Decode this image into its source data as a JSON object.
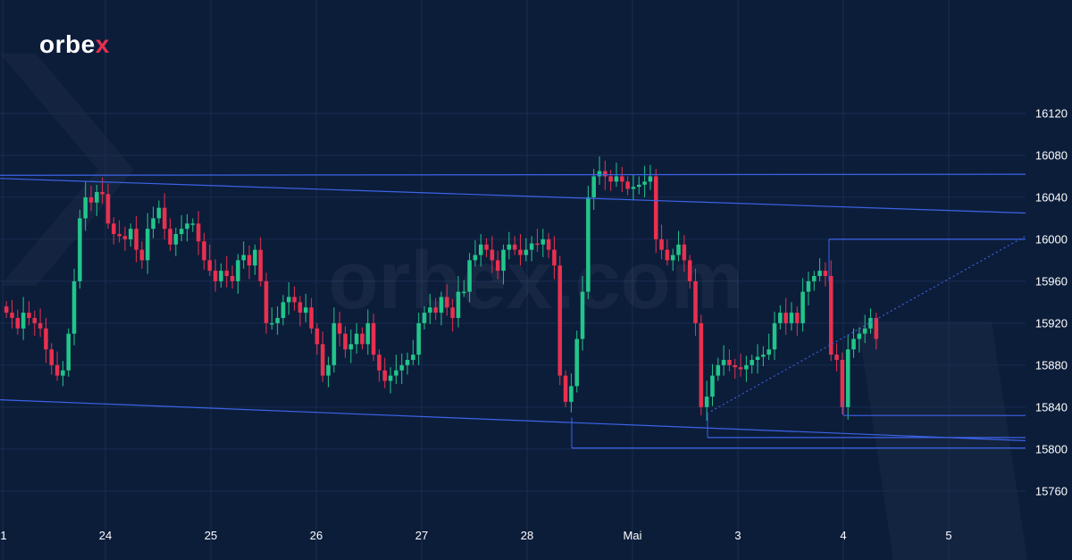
{
  "brand": {
    "logo_text": "orbe",
    "logo_x": "x",
    "watermark": "orbex.com",
    "accent": "#e8304f"
  },
  "colors": {
    "background": "#0c1d3a",
    "grid": "#1a2d4f",
    "up": "#22c58a",
    "down": "#e8304f",
    "line": "#3d63e8",
    "text": "#ffffff"
  },
  "chart_data": {
    "type": "candlestick",
    "title": "",
    "xlabel": "",
    "ylabel": "",
    "ylim": [
      15730,
      16160
    ],
    "xlim": [
      0,
      1148
    ],
    "grid": true,
    "yticks": [
      16120,
      16080,
      16040,
      16000,
      15960,
      15920,
      15880,
      15840,
      15800,
      15760
    ],
    "xticks": [
      {
        "label": "1",
        "x": 3
      },
      {
        "label": "24",
        "x": 118
      },
      {
        "label": "25",
        "x": 236
      },
      {
        "label": "26",
        "x": 354
      },
      {
        "label": "27",
        "x": 472
      },
      {
        "label": "28",
        "x": 590
      },
      {
        "label": "Mai",
        "x": 708
      },
      {
        "label": "3",
        "x": 826
      },
      {
        "label": "4",
        "x": 944
      },
      {
        "label": "5",
        "x": 1062
      }
    ],
    "closes": [
      15930,
      15925,
      15915,
      15930,
      15925,
      15920,
      15915,
      15895,
      15880,
      15870,
      15875,
      15910,
      15960,
      16020,
      16040,
      16035,
      16045,
      16043,
      16015,
      16005,
      16003,
      16000,
      16010,
      15990,
      15980,
      16010,
      16020,
      16030,
      16010,
      15995,
      16005,
      16010,
      16015,
      16015,
      15998,
      15980,
      15970,
      15960,
      15970,
      15965,
      15960,
      15980,
      15985,
      15975,
      15990,
      15960,
      15920,
      15920,
      15925,
      15940,
      15945,
      15940,
      15930,
      15935,
      15915,
      15900,
      15870,
      15880,
      15920,
      15910,
      15895,
      15900,
      15910,
      15900,
      15920,
      15890,
      15875,
      15865,
      15870,
      15875,
      15880,
      15885,
      15890,
      15920,
      15930,
      15935,
      15930,
      15945,
      15935,
      15925,
      15950,
      15950,
      15980,
      15985,
      15995,
      15990,
      15980,
      15970,
      15990,
      15995,
      15990,
      15985,
      15990,
      15996,
      15995,
      16000,
      15990,
      15975,
      15870,
      15845,
      15860,
      15905,
      15950,
      16040,
      16060,
      16065,
      16060,
      16055,
      16060,
      16055,
      16048,
      16050,
      16052,
      16055,
      16060,
      16000,
      15990,
      15980,
      15985,
      15995,
      15980,
      15960,
      15920,
      15840,
      15850,
      15870,
      15880,
      15885,
      15880,
      15878,
      15876,
      15880,
      15885,
      15888,
      15890,
      15895,
      15920,
      15930,
      15920,
      15930,
      15920,
      15950,
      15960,
      15965,
      15970,
      15965,
      15890,
      15885,
      15840,
      15895,
      15905,
      15910,
      15915,
      15925,
      15905
    ],
    "drawn_lines": [
      {
        "name": "",
        "points": [
          [
            0,
            16061
          ],
          [
            1148,
            16062
          ]
        ]
      },
      {
        "name": "",
        "points": [
          [
            0,
            16058
          ],
          [
            1148,
            16025
          ]
        ]
      },
      {
        "name": "",
        "points": [
          [
            0,
            15847
          ],
          [
            1148,
            15808
          ]
        ]
      },
      {
        "name": "",
        "points": [
          [
            928,
            16000
          ],
          [
            1148,
            16000
          ]
        ]
      },
      {
        "name": "",
        "points": [
          [
            944,
            15832
          ],
          [
            1148,
            15832
          ]
        ]
      },
      {
        "name": "",
        "points": [
          [
            792,
            15811
          ],
          [
            1148,
            15811
          ]
        ]
      },
      {
        "name": "",
        "points": [
          [
            640,
            15801
          ],
          [
            1148,
            15801
          ]
        ]
      }
    ],
    "dotted_lines": [
      {
        "name": "",
        "points": [
          [
            796,
            15836
          ],
          [
            1148,
            16003
          ]
        ]
      }
    ]
  }
}
